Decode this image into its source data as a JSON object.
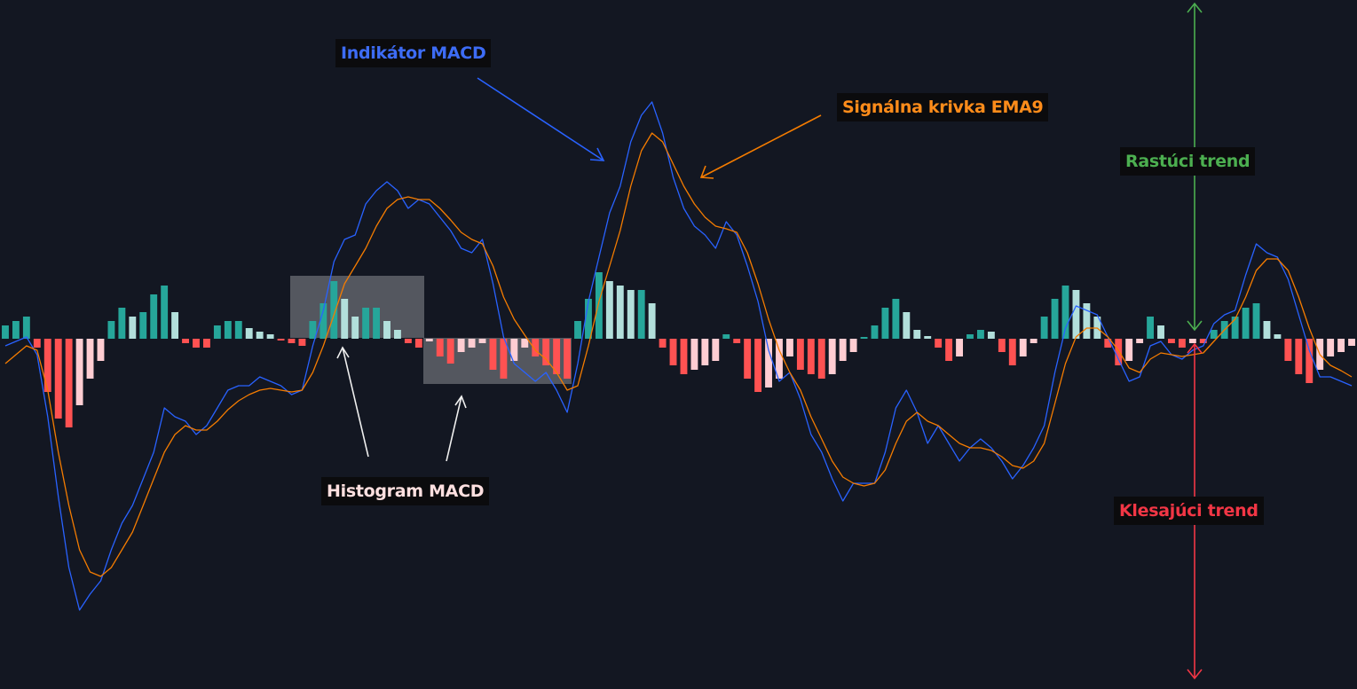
{
  "chart_data": {
    "type": "macd",
    "ylim": [
      -395,
      382
    ],
    "histogram": {
      "values": [
        15,
        20,
        25,
        -10,
        -60,
        -90,
        -100,
        -75,
        -45,
        -25,
        20,
        35,
        25,
        30,
        50,
        60,
        30,
        -5,
        -10,
        -10,
        15,
        20,
        20,
        12,
        8,
        5,
        -2,
        -5,
        -8,
        20,
        40,
        65,
        45,
        25,
        35,
        35,
        20,
        10,
        -5,
        -10,
        -3,
        -20,
        -28,
        -15,
        -10,
        -5,
        -35,
        -45,
        -25,
        -10,
        -20,
        -30,
        -40,
        -45,
        20,
        45,
        75,
        65,
        60,
        55,
        55,
        40,
        -10,
        -30,
        -40,
        -35,
        -30,
        -25,
        5,
        -5,
        -45,
        -60,
        -55,
        -45,
        -20,
        -35,
        -40,
        -45,
        -40,
        -25,
        -15,
        2,
        15,
        35,
        45,
        30,
        10,
        3,
        -10,
        -25,
        -20,
        5,
        10,
        8,
        -15,
        -30,
        -20,
        -5,
        25,
        45,
        60,
        55,
        40,
        25,
        -10,
        -30,
        -25,
        -5,
        25,
        15,
        -5,
        -10,
        -5,
        -5,
        10,
        20,
        25,
        35,
        40,
        20,
        5,
        -25,
        -40,
        -50,
        -35,
        -20,
        -15,
        -8
      ],
      "colors": {
        "rising_positive": "#26a69a",
        "falling_positive": "#b2dfdb",
        "falling_negative": "#ff5252",
        "rising_negative": "#ffcdd2"
      }
    },
    "series": [
      {
        "name": "MACD",
        "color": "#2962ff",
        "values": [
          -8,
          -3,
          2,
          -18,
          -88,
          -178,
          -258,
          -306,
          -288,
          -273,
          -238,
          -208,
          -188,
          -158,
          -128,
          -78,
          -88,
          -93,
          -108,
          -98,
          -78,
          -58,
          -53,
          -53,
          -43,
          -48,
          -53,
          -63,
          -58,
          -8,
          32,
          87,
          112,
          117,
          152,
          167,
          177,
          167,
          147,
          157,
          152,
          137,
          122,
          102,
          97,
          112,
          62,
          2,
          -28,
          -38,
          -48,
          -38,
          -58,
          -83,
          -28,
          42,
          92,
          142,
          172,
          222,
          252,
          267,
          232,
          182,
          147,
          127,
          117,
          102,
          132,
          117,
          82,
          42,
          -13,
          -48,
          -38,
          -68,
          -108,
          -128,
          -158,
          -183,
          -163,
          -163,
          -163,
          -128,
          -78,
          -58,
          -83,
          -118,
          -98,
          -118,
          -138,
          -123,
          -113,
          -123,
          -138,
          -158,
          -143,
          -123,
          -98,
          -38,
          12,
          37,
          32,
          27,
          2,
          -23,
          -48,
          -43,
          -8,
          -3,
          -18,
          -23,
          -13,
          -8,
          17,
          27,
          32,
          72,
          107,
          97,
          92,
          67,
          27,
          -13,
          -43,
          -43,
          -48,
          -53
        ]
      },
      {
        "name": "Signal",
        "color": "#f57c00",
        "values": [
          -28,
          -18,
          -8,
          -13,
          -58,
          -128,
          -188,
          -238,
          -263,
          -268,
          -258,
          -238,
          -218,
          -188,
          -158,
          -128,
          -108,
          -98,
          -103,
          -103,
          -93,
          -80,
          -70,
          -63,
          -58,
          -56,
          -58,
          -60,
          -58,
          -38,
          -8,
          27,
          62,
          82,
          102,
          127,
          147,
          157,
          160,
          157,
          157,
          147,
          134,
          120,
          112,
          107,
          82,
          47,
          22,
          4,
          -13,
          -23,
          -38,
          -58,
          -53,
          -8,
          42,
          82,
          122,
          172,
          212,
          232,
          222,
          197,
          172,
          152,
          137,
          127,
          124,
          120,
          97,
          62,
          22,
          -13,
          -38,
          -58,
          -88,
          -113,
          -138,
          -156,
          -163,
          -166,
          -163,
          -148,
          -118,
          -93,
          -83,
          -93,
          -98,
          -108,
          -118,
          -123,
          -123,
          -126,
          -133,
          -143,
          -146,
          -138,
          -118,
          -73,
          -28,
          2,
          12,
          12,
          2,
          -13,
          -33,
          -38,
          -23,
          -16,
          -18,
          -20,
          -18,
          -16,
          -3,
          10,
          22,
          47,
          77,
          90,
          90,
          77,
          47,
          12,
          -18,
          -30,
          -36,
          -43
        ]
      }
    ],
    "annotations": [
      "Indikátor MACD",
      "Signálna krivka EMA9",
      "Rastúci trend",
      "Klesajúci trend",
      "Histogram MACD"
    ]
  }
}
